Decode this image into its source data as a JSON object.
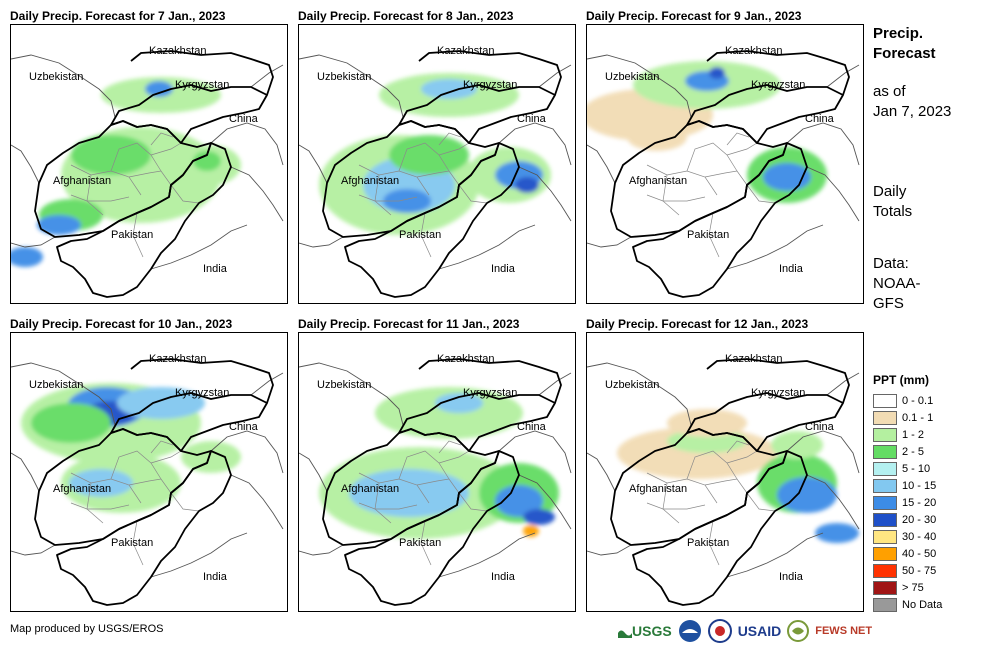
{
  "panels": [
    {
      "title": "Daily Precip. Forecast for 7 Jan., 2023",
      "day": 7
    },
    {
      "title": "Daily Precip. Forecast for 8 Jan., 2023",
      "day": 8
    },
    {
      "title": "Daily Precip. Forecast for 9 Jan., 2023",
      "day": 9
    },
    {
      "title": "Daily Precip. Forecast for 10 Jan., 2023",
      "day": 10
    },
    {
      "title": "Daily Precip. Forecast for 11 Jan., 2023",
      "day": 11
    },
    {
      "title": "Daily Precip. Forecast for 12 Jan., 2023",
      "day": 12
    }
  ],
  "countries": {
    "kazakhstan": "Kazakhstan",
    "uzbekistan": "Uzbekistan",
    "kyrgyzstan": "Kyrgyzstan",
    "china": "China",
    "afghanistan": "Afghanistan",
    "pakistan": "Pakistan",
    "india": "India"
  },
  "side": {
    "title_line1": "Precip.",
    "title_line2": "Forecast",
    "asof_line1": "as of",
    "asof_line2": "Jan 7, 2023",
    "daily_line1": "Daily",
    "daily_line2": "Totals",
    "data_line1": "Data:",
    "data_line2": "NOAA-",
    "data_line3": "GFS"
  },
  "legend": {
    "title": "PPT (mm)",
    "items": [
      {
        "label": "0 - 0.1",
        "color": "#ffffff"
      },
      {
        "label": "0.1 - 1",
        "color": "#f2dcb4"
      },
      {
        "label": "1 - 2",
        "color": "#b4f0a0"
      },
      {
        "label": "2 - 5",
        "color": "#64dc64"
      },
      {
        "label": "5 - 10",
        "color": "#b4f0f0"
      },
      {
        "label": "10 - 15",
        "color": "#82c8f0"
      },
      {
        "label": "15 - 20",
        "color": "#3c8ce6"
      },
      {
        "label": "20 - 30",
        "color": "#1e50c8"
      },
      {
        "label": "30 - 40",
        "color": "#ffe682"
      },
      {
        "label": "40 - 50",
        "color": "#ffa000"
      },
      {
        "label": "50 - 75",
        "color": "#ff3200"
      },
      {
        "label": "> 75",
        "color": "#a01414"
      },
      {
        "label": "No Data",
        "color": "#999999"
      }
    ]
  },
  "credit": "Map produced by USGS/EROS",
  "logos": {
    "usgs": "USGS",
    "usaid": "USAID",
    "fewsnet": "FEWS NET"
  }
}
